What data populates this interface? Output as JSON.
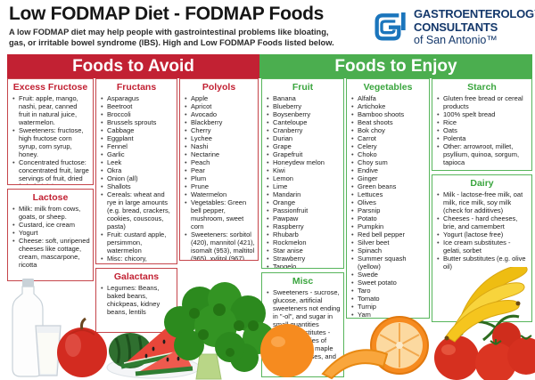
{
  "header": {
    "title": "Low FODMAP Diet - FODMAP Foods",
    "subtitle": "A low FODMAP diet may help people with gastrointestinal problems like bloating, gas, or irritable bowel syndrome (IBS). High and Low FODMAP Foods listed below.",
    "logo": {
      "line1": "GASTROENTEROLOGY",
      "line2": "CONSULTANTS",
      "line3": "of San Antonio™"
    }
  },
  "colors": {
    "avoid_red": "#C22133",
    "enjoy_green": "#4BAE4F",
    "logo_blue": "#1B75BC",
    "logo_navy": "#14386B"
  },
  "avoid": {
    "title": "Foods to Avoid",
    "sections": {
      "excess_fructose": {
        "title": "Excess Fructose",
        "items": [
          "Fruit: apple, mango, nashi, pear, canned fruit in natural juice, watermelon.",
          "Sweeteners: fructose, high fructose corn syrup, corn syrup, honey.",
          "Concentrated fructose: concentrated fruit, large servings of fruit, dried fruit, fruit juice."
        ]
      },
      "lactose": {
        "title": "Lactose",
        "items": [
          "Milk: milk from cows, goats, or sheep.",
          "Custard, ice cream",
          "Yogurt",
          "Cheese: soft, unripened cheeses like cottage, cream, mascarpone, ricotta"
        ]
      },
      "fructans": {
        "title": "Fructans",
        "items": [
          "Asparagus",
          "Beetroot",
          "Broccoli",
          "Brussels sprouts",
          "Cabbage",
          "Eggplant",
          "Fennel",
          "Garlic",
          "Leek",
          "Okra",
          "Onion (all)",
          "Shallots",
          "Cereals: wheat and rye in large amounts (e.g. bread, crackers, cookies, couscous, pasta)",
          "Fruit: custard apple, persimmon, watermelon",
          "Misc: chicory, dandelion, inulin"
        ]
      },
      "galactans": {
        "title": "Galactans",
        "items": [
          "Legumes: Beans, baked beans, chickpeas, kidney beans, lentils"
        ]
      },
      "polyols": {
        "title": "Polyols",
        "items": [
          "Apple",
          "Apricot",
          "Avocado",
          "Blackberry",
          "Cherry",
          "Lychee",
          "Nashi",
          "Nectarine",
          "Peach",
          "Pear",
          "Plum",
          "Prune",
          "Watermelon",
          "Vegetables: Green bell pepper, mushroom, sweet corn",
          "Sweeteners: sorbitol (420), mannitol (421), isomalt (953), maltitol (965), xylitol (967)"
        ]
      }
    }
  },
  "enjoy": {
    "title": "Foods to Enjoy",
    "sections": {
      "fruit": {
        "title": "Fruit",
        "items": [
          "Banana",
          "Blueberry",
          "Boysenberry",
          "Canteloupe",
          "Cranberry",
          "Durian",
          "Grape",
          "Grapefruit",
          "Honeydew melon",
          "Kiwi",
          "Lemon",
          "Lime",
          "Mandarin",
          "Orange",
          "Passionfruit",
          "Pawpaw",
          "Raspberry",
          "Rhubarb",
          "Rockmelon",
          "Star anise",
          "Strawberry",
          "Tangelo"
        ]
      },
      "misc": {
        "title": "Misc",
        "items": [
          "Sweeteners - sucrose, glucose, artificial sweeteners not ending in \"-ol\", and sugar in small quantities",
          "Honey substitutes - small quantities of golden syrup, maple syrup, molasses, and treacle"
        ]
      },
      "vegetables": {
        "title": "Vegetables",
        "items": [
          "Alfalfa",
          "Artichoke",
          "Bamboo shoots",
          "Beat shoots",
          "Bok choy",
          "Carrot",
          "Celery",
          "Choko",
          "Choy sum",
          "Endive",
          "Ginger",
          "Green beans",
          "Lettuces",
          "Olives",
          "Parsnip",
          "Potato",
          "Pumpkin",
          "Red bell pepper",
          "Silver beet",
          "Spinach",
          "Summer squash (yellow)",
          "Swede",
          "Sweet potato",
          "Taro",
          "Tomato",
          "Turnip",
          "Yam",
          "Zucchini"
        ]
      },
      "starch": {
        "title": "Starch",
        "items": [
          "Gluten free bread or cereal products",
          "100% spelt bread",
          "Rice",
          "Oats",
          "Polenta",
          "Other: arrowroot, millet, psyllium, quinoa, sorgum, tapioca"
        ]
      },
      "dairy": {
        "title": "Dairy",
        "items": [
          "Milk - lactose-free milk, oat milk, rice milk, soy milk (check for additives)",
          "Cheeses - hard cheeses, brie, and camembert",
          "Yogurt (lactose free)",
          "Ice cream substitutes - gelati, sorbet",
          "Butter substitutes (e.g. olive oil)"
        ]
      }
    }
  },
  "photos": {
    "left": [
      "milk-bottle-and-glass",
      "apple",
      "watermelon",
      "broccoli"
    ],
    "right": [
      "oranges",
      "tomatoes-on-vine",
      "bananas"
    ]
  }
}
